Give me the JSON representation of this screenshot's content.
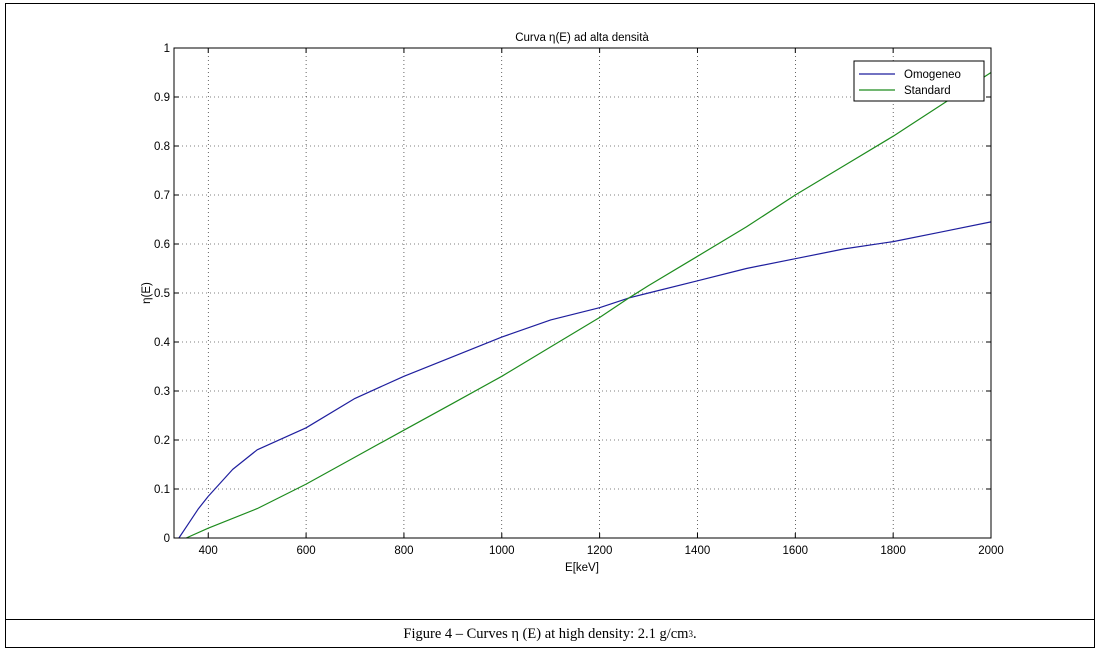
{
  "chart_data": {
    "type": "line",
    "title": "Curva η(E) ad alta densità",
    "xlabel": "E[keV]",
    "ylabel": "η(E)",
    "xlim": [
      330,
      2000
    ],
    "ylim": [
      0,
      1
    ],
    "xticks": [
      400,
      600,
      800,
      1000,
      1200,
      1400,
      1600,
      1800,
      2000
    ],
    "yticks": [
      0,
      0.1,
      0.2,
      0.3,
      0.4,
      0.5,
      0.6,
      0.7,
      0.8,
      0.9,
      1
    ],
    "grid": true,
    "legend_position": "top-right",
    "series": [
      {
        "name": "Omogeneo",
        "color": "#1f1f9e",
        "x": [
          340,
          360,
          380,
          400,
          450,
          500,
          600,
          700,
          800,
          900,
          1000,
          1100,
          1200,
          1260,
          1300,
          1400,
          1500,
          1600,
          1700,
          1800,
          1900,
          2000
        ],
        "y": [
          0.0,
          0.03,
          0.06,
          0.085,
          0.14,
          0.18,
          0.225,
          0.285,
          0.33,
          0.37,
          0.41,
          0.445,
          0.47,
          0.49,
          0.5,
          0.525,
          0.55,
          0.57,
          0.59,
          0.605,
          0.625,
          0.645
        ]
      },
      {
        "name": "Standard",
        "color": "#1e8c1e",
        "x": [
          355,
          400,
          500,
          600,
          700,
          800,
          900,
          1000,
          1100,
          1200,
          1260,
          1300,
          1400,
          1500,
          1600,
          1700,
          1800,
          1900,
          2000
        ],
        "y": [
          0.0,
          0.02,
          0.06,
          0.11,
          0.165,
          0.22,
          0.275,
          0.33,
          0.39,
          0.45,
          0.49,
          0.515,
          0.575,
          0.635,
          0.7,
          0.76,
          0.82,
          0.885,
          0.95
        ]
      }
    ]
  },
  "caption": {
    "text": "Figure 4 – Curves η (E) at high density: 2.1 g/cm",
    "superscript": "3",
    "suffix": "."
  }
}
